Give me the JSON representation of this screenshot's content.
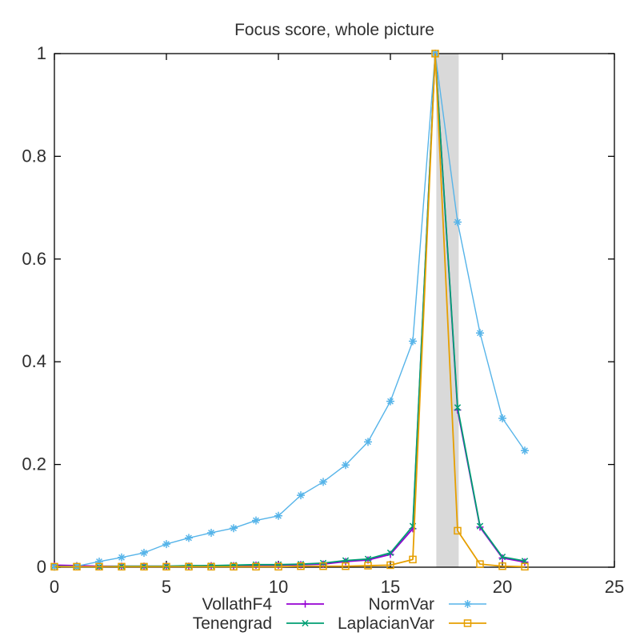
{
  "chart_data": {
    "type": "line",
    "title": "Focus score, whole picture",
    "xlabel": "",
    "ylabel": "",
    "xlim": [
      0,
      25
    ],
    "ylim": [
      0,
      1
    ],
    "xticks": [
      0,
      5,
      10,
      15,
      20,
      25
    ],
    "yticks": [
      0,
      0.2,
      0.4,
      0.6,
      0.8,
      1
    ],
    "grid": false,
    "legend_position": "bottom-center-two-columns",
    "highlight_band": {
      "x_start": 17.05,
      "x_end": 18.05,
      "color": "#d9d9d9"
    },
    "x": [
      0,
      1,
      2,
      3,
      4,
      5,
      6,
      7,
      8,
      9,
      10,
      11,
      12,
      13,
      14,
      15,
      16,
      17,
      18,
      19,
      20,
      21
    ],
    "series": [
      {
        "name": "VollathF4",
        "color": "#9400d3",
        "marker": "plus",
        "line_width": 1.8,
        "values": [
          0.004,
          0.003,
          0.002,
          0.002,
          0.002,
          0.002,
          0.002,
          0.003,
          0.003,
          0.004,
          0.004,
          0.005,
          0.006,
          0.011,
          0.014,
          0.025,
          0.075,
          1.0,
          0.306,
          0.078,
          0.018,
          0.01
        ]
      },
      {
        "name": "Tenengrad",
        "color": "#009e73",
        "marker": "cross",
        "line_width": 1.8,
        "values": [
          0.002,
          0.001,
          0.001,
          0.002,
          0.002,
          0.002,
          0.003,
          0.003,
          0.004,
          0.005,
          0.005,
          0.006,
          0.008,
          0.013,
          0.016,
          0.028,
          0.08,
          1.0,
          0.311,
          0.08,
          0.02,
          0.012
        ]
      },
      {
        "name": "NormVar",
        "color": "#56b4e9",
        "marker": "asterisk",
        "line_width": 1.4,
        "values": [
          0.001,
          0.002,
          0.011,
          0.019,
          0.028,
          0.045,
          0.057,
          0.067,
          0.076,
          0.091,
          0.1,
          0.14,
          0.166,
          0.199,
          0.244,
          0.323,
          0.44,
          1.0,
          0.672,
          0.456,
          0.29,
          0.227
        ]
      },
      {
        "name": "LaplacianVar",
        "color": "#e69f00",
        "marker": "square",
        "line_width": 1.8,
        "values": [
          0.001,
          0.001,
          0.001,
          0.001,
          0.001,
          0.001,
          0.001,
          0.001,
          0.001,
          0.001,
          0.001,
          0.002,
          0.002,
          0.002,
          0.003,
          0.004,
          0.015,
          1.0,
          0.071,
          0.006,
          0.002,
          0.001
        ]
      }
    ]
  },
  "colors": {
    "background": "#ffffff",
    "axis": "#000000",
    "tick_text": "#2e2e2e",
    "title_text": "#303030"
  }
}
